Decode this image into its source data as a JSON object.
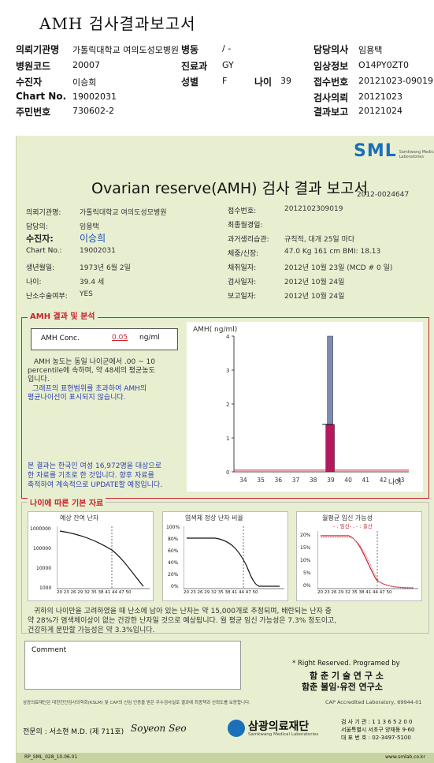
{
  "header": {
    "title": "AMH 검사결과보고서",
    "left": [
      {
        "label": "의뢰기관명",
        "value": "가톨릭대학교 여의도성모병원"
      },
      {
        "label": "병원코드",
        "value": "20007"
      },
      {
        "label": "수진자",
        "value": "이승희"
      },
      {
        "label": "Chart No.",
        "value": "19002031"
      },
      {
        "label": "주민번호",
        "value": "730602-2"
      }
    ],
    "ward_label": "병동",
    "ward_value": "/ -",
    "dept_label": "진료과",
    "dept_value": "GY",
    "sex_label": "성별",
    "sex_value": "F",
    "age_label": "나이",
    "age_value": "39",
    "right": [
      {
        "label": "담당의사",
        "value": "임용택"
      },
      {
        "label": "임상정보",
        "value": "O14PY0ZT0"
      },
      {
        "label": "접수번호",
        "value": "20121023-09019"
      },
      {
        "label": "검사의뢰",
        "value": "20121023"
      },
      {
        "label": "결과보고",
        "value": "20121024"
      }
    ]
  },
  "report": {
    "logo": "SML",
    "logo_sub": "Samkwang Medical Laboratories",
    "title": "Ovarian reserve(AMH) 검사 결과 보고서",
    "report_id": "2012-0024647",
    "left_info": [
      {
        "label": "의뢰기관명:",
        "value": "가톨릭대학교 여의도성모병원"
      },
      {
        "label": "담당의:",
        "value": "임용택"
      },
      {
        "label": "수진자:",
        "value": "이승희"
      },
      {
        "label": "Chart No.:",
        "value": "19002031"
      },
      {
        "label": "생년월일:",
        "value": "1973년 6월 2일"
      },
      {
        "label": "나이:",
        "value": "39.4 세"
      },
      {
        "label": "난소수술여부:",
        "value": "YES"
      }
    ],
    "right_info": [
      {
        "label": "접수번호:",
        "value": "2012102309019"
      },
      {
        "label": "최종월경일:",
        "value": ""
      },
      {
        "label": "과거생리습관:",
        "value": "규칙적, 대개  25일 마다"
      },
      {
        "label": "체중/신장:",
        "value": "47.0 Kg    161 cm    BMI:  18.13"
      },
      {
        "label": "채취일자:",
        "value": "2012년 10월 23일  (MCD # 0 일)"
      },
      {
        "label": "검사일자:",
        "value": "2012년 10월 24일"
      },
      {
        "label": "보고일자:",
        "value": "2012년 10월 24일"
      }
    ],
    "amh_section_title": "AMH 결과 및 분석",
    "conc_label": "AMH Conc.",
    "conc_value": "0.05",
    "conc_unit": "ng/ml",
    "analysis_lines": [
      "AMH 농도는 동일 나이군에서  .00 ~  10",
      "percentile에 속하며,  약   48세의 평균농도",
      "입니다.",
      "그래프의 표현범위를 초과하여 AMH의",
      "평균나이선이 표시되지 않습니다."
    ],
    "basis_lines": [
      "본 결과는 한국인 여성 16,972명을 대상으로",
      "한 자료를 기초로 한 것입니다. 향후 자료를",
      "축적하여 계속적으로 UPDATE할 예정입니다."
    ],
    "age_section_title": "나이에 따른 기본 자료",
    "mini_titles": [
      "예상 잔여 난자",
      "염색체 정상 난자 비율",
      "월평균 임신 가능성"
    ],
    "mini3_legend": "- : 임신- , - : 출산",
    "mini_xticks": "20 23 26 29 32 35 38 41 44 47 50",
    "mini1_yticks": [
      "1000000",
      "100000",
      "10000",
      "1000"
    ],
    "mini2_yticks": [
      "100%",
      "80%",
      "60%",
      "40%",
      "20%",
      "0%"
    ],
    "mini3_yticks": [
      "20%",
      "15%",
      "10%",
      "5%",
      "0%"
    ],
    "summary_lines": [
      "귀하의 나이만을 고려하였을 때 난소에 남아 있는 난자는 약    15,000개로 추정되며, 배란되는 난자 중",
      "약  28%가 염색체이상이 없는 건강한 난자일 것으로 예상됩니다. 월 평균 임신 가능성은 7.3% 정도이고,",
      "건강하게 분만할 가능성은 약 3.3%입니다."
    ],
    "comment_label": "Comment",
    "rights": "* Right Reserved. Programed by",
    "lab1": "함 춘  기 술  연 구 소",
    "lab2": "함춘 불임·유전 연구소",
    "footer_note": "삼광의료재단은 대한진단검사의학회(KSLM) 및 CAP의 신임 인증을 받은 우수검사실로 결과에 최종책과 신뢰도를 보증합니다.",
    "cap": "CAP  Accredited  Laboratory,  69944-01",
    "signer": "전문의 : 서소현 M.D. (제 711호)",
    "signature": "Soyeon Seo",
    "foundation": "삼광의료재단",
    "foundation_en": "Samkwang Medical Laboratories",
    "contacts": [
      "검 사 기 관 : 1 1 3 6 5 2 0 0",
      "서울특별시 서초구 양재동 9-60",
      "대 표 번 호 : 02-3497-5100"
    ],
    "form_code": "RP_SML_028_10.06.01",
    "website": "www.smlab.co.kr"
  },
  "chart_data": {
    "type": "bar",
    "title": "",
    "ylabel": "AMH( ng/ml)",
    "xlabel": "나이",
    "categories": [
      34,
      35,
      36,
      37,
      38,
      39,
      40,
      41,
      42,
      43
    ],
    "ylim": [
      0,
      4
    ],
    "yticks": [
      0,
      1,
      2,
      3,
      4
    ],
    "series": [
      {
        "values": [
          null,
          null,
          null,
          null,
          null,
          1.4,
          null,
          null,
          null,
          null
        ],
        "color": "#b5185e"
      },
      {
        "values": [
          null,
          null,
          null,
          null,
          null,
          4.0,
          null,
          null,
          null,
          null
        ],
        "color": "#7d8cb5"
      }
    ],
    "amh_line": 0.05
  }
}
